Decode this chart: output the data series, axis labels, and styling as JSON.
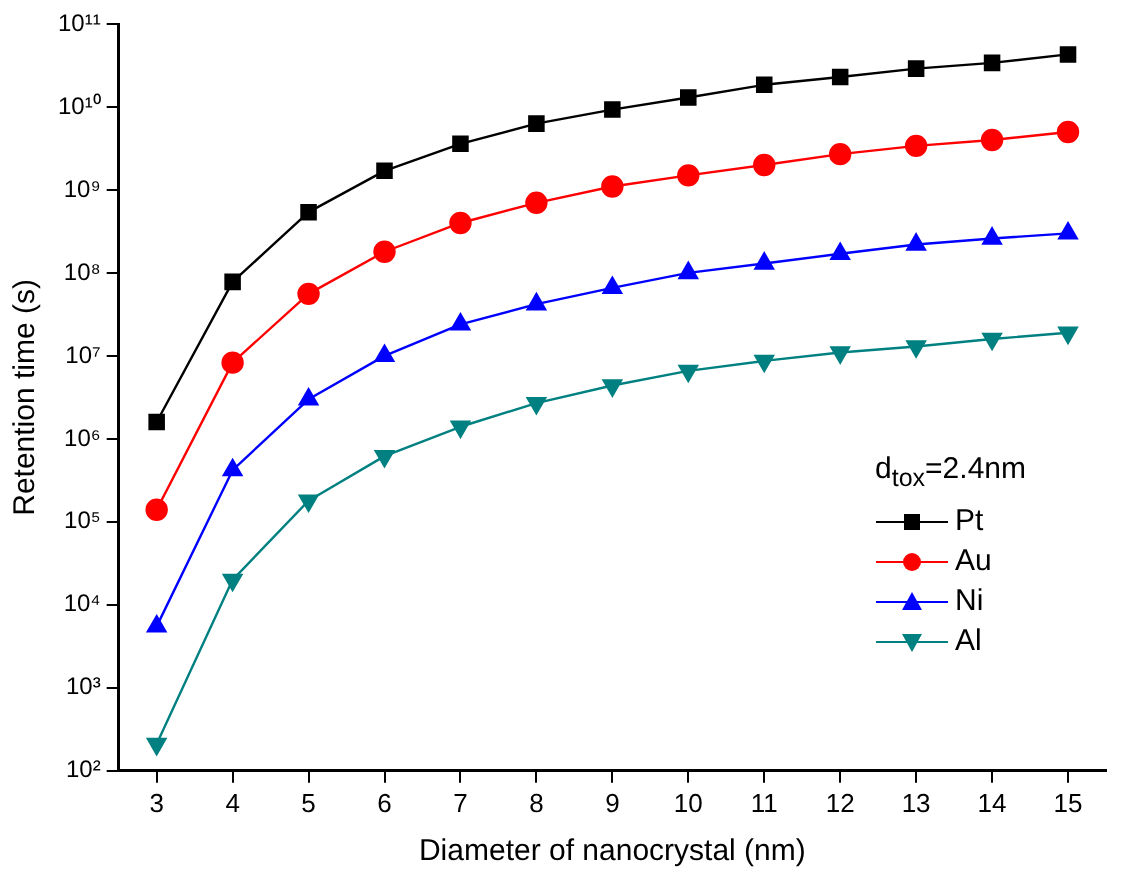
{
  "chart_data": {
    "type": "line",
    "xlabel": "Diameter of nanocrystal (nm)",
    "ylabel": "Retention time (s)",
    "legend_title": "d$_{tox}$=2.4nm",
    "x": [
      3,
      4,
      5,
      6,
      7,
      8,
      9,
      10,
      11,
      12,
      13,
      14,
      15
    ],
    "xlim": [
      2.5,
      15.5
    ],
    "xticks": [
      3,
      4,
      5,
      6,
      7,
      8,
      9,
      10,
      11,
      12,
      13,
      14,
      15
    ],
    "ylim": [
      100,
      100000000000
    ],
    "yticks": [
      {
        "value": 100,
        "label": "10²"
      },
      {
        "value": 1000,
        "label": "10³"
      },
      {
        "value": 10000,
        "label": "10⁴"
      },
      {
        "value": 100000,
        "label": "10⁵"
      },
      {
        "value": 1000000,
        "label": "10⁶"
      },
      {
        "value": 10000000,
        "label": "10⁷"
      },
      {
        "value": 100000000,
        "label": "10⁸"
      },
      {
        "value": 1000000000,
        "label": "10⁹"
      },
      {
        "value": 10000000000,
        "label": "10¹⁰"
      },
      {
        "value": 100000000000,
        "label": "10¹¹"
      }
    ],
    "log": "y",
    "grid": false,
    "legend": "right",
    "line_style": "solid",
    "series": [
      {
        "name": "Pt",
        "color": "#000000",
        "marker": "square",
        "values": [
          1600000,
          78000000,
          540000000,
          1700000000,
          3600000000,
          6300000000,
          9300000000,
          13000000000,
          18500000000,
          23000000000,
          29000000000,
          34000000000,
          43000000000
        ]
      },
      {
        "name": "Au",
        "color": "#ff0000",
        "marker": "circle",
        "values": [
          140000,
          8300000,
          56000000,
          180000000,
          400000000,
          700000000,
          1100000000,
          1500000000,
          2000000000,
          2700000000,
          3400000000,
          4000000000,
          5000000000
        ]
      },
      {
        "name": "Ni",
        "color": "#0000ff",
        "marker": "triangle",
        "values": [
          5500,
          420000,
          3000000,
          10000000,
          24000000,
          42000000,
          66000000,
          100000000,
          130000000,
          170000000,
          220000000,
          260000000,
          300000000
        ]
      },
      {
        "name": "Al",
        "color": "#008080",
        "marker": "triangle-down",
        "values": [
          210,
          20000,
          180000,
          620000,
          1400000,
          2700000,
          4400000,
          6600000,
          8700000,
          11000000,
          13000000,
          16000000,
          19000000
        ]
      }
    ]
  }
}
